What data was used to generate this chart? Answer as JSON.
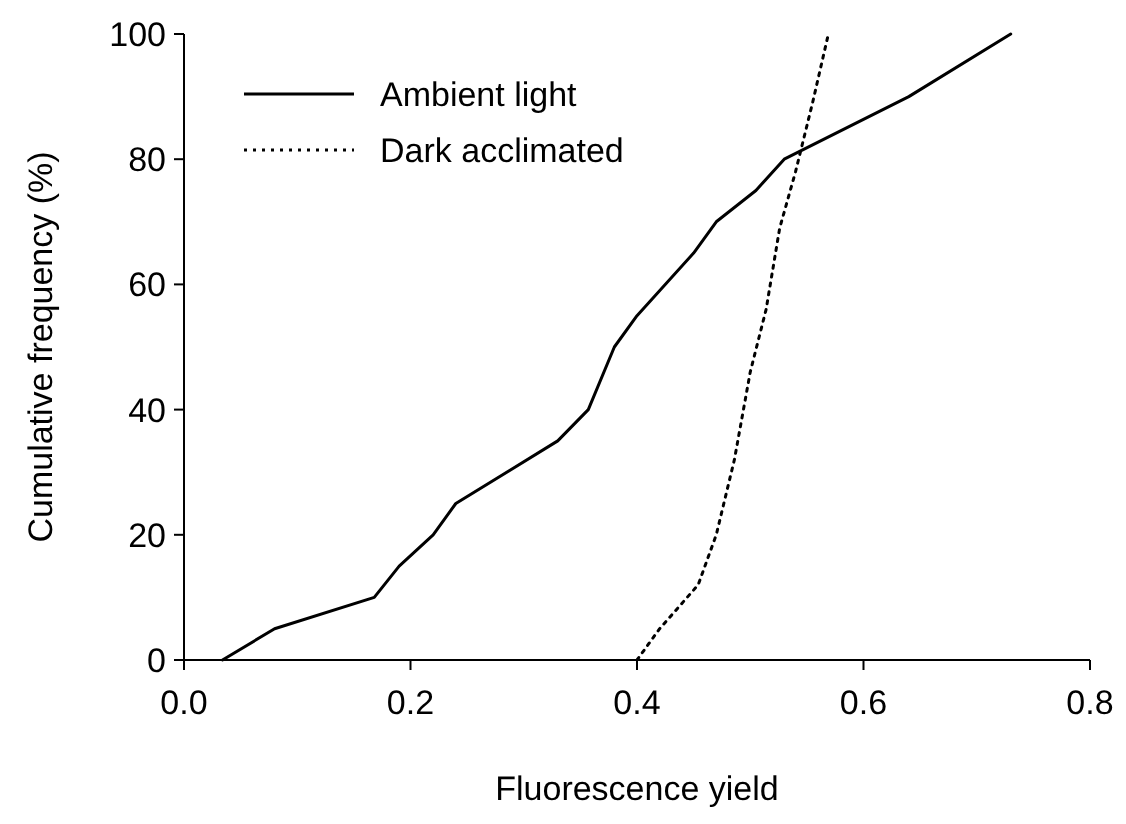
{
  "chart_data": {
    "type": "line",
    "xlabel": "Fluorescence yield",
    "ylabel": "Cumulative frequency (%)",
    "xlim": [
      0,
      0.8
    ],
    "ylim": [
      0,
      100
    ],
    "xticks": [
      {
        "value": 0,
        "label": "0.0"
      },
      0.2,
      0.4,
      0.6,
      0.8
    ],
    "yticks": [
      0,
      20,
      40,
      60,
      80,
      100
    ],
    "legend": "top left",
    "grid": false,
    "series": [
      {
        "name": "Ambient light",
        "color": "#000000",
        "line_style": "solid",
        "x": [
          0.034,
          0.08,
          0.168,
          0.19,
          0.22,
          0.24,
          0.33,
          0.357,
          0.38,
          0.4,
          0.45,
          0.47,
          0.505,
          0.53,
          0.64,
          0.73
        ],
        "values": [
          0,
          5,
          10,
          15,
          20,
          25,
          35,
          40,
          50,
          55,
          65,
          70,
          75,
          80,
          90,
          100
        ]
      },
      {
        "name": "Dark acclimated",
        "color": "#000000",
        "line_style": "dotted",
        "x": [
          0.4,
          0.42,
          0.454,
          0.47,
          0.486,
          0.5,
          0.514,
          0.526,
          0.54,
          0.555,
          0.569
        ],
        "values": [
          0,
          5,
          12,
          20,
          32,
          46,
          56,
          69,
          78,
          89,
          100
        ]
      }
    ]
  }
}
